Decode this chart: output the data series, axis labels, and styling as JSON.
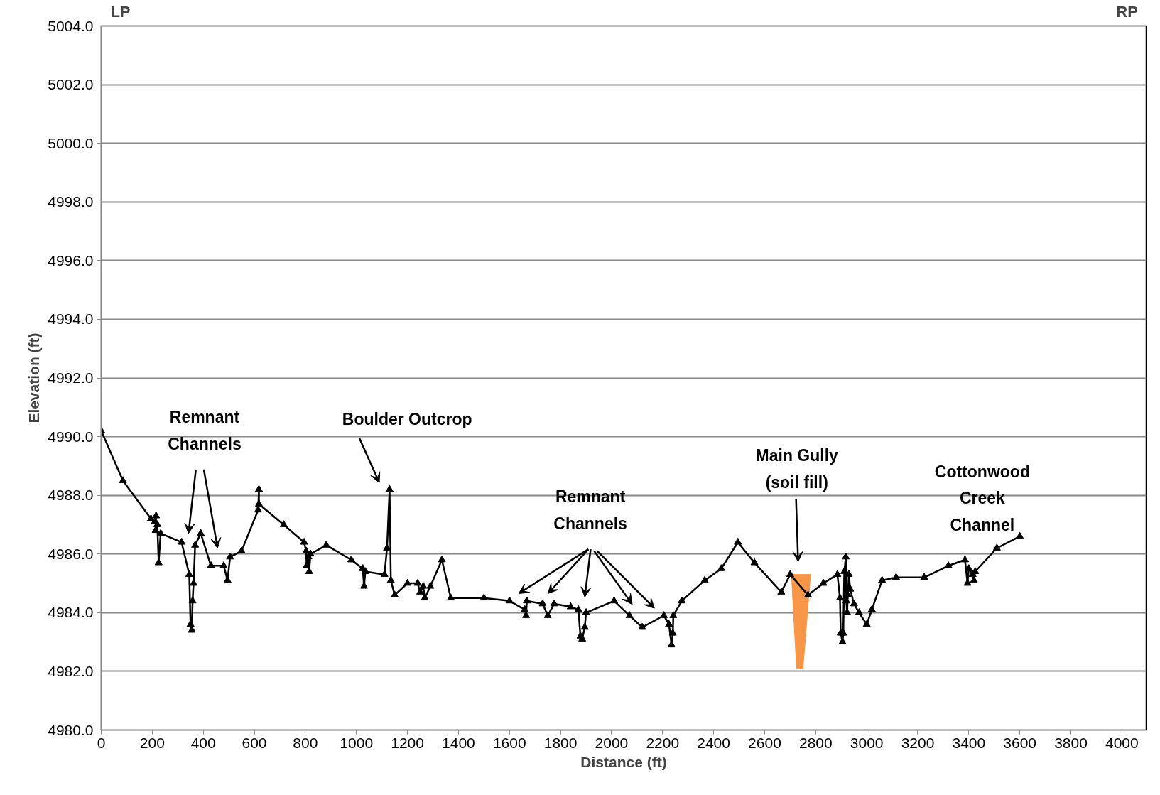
{
  "chart_data": {
    "type": "line",
    "xlabel": "Distance (ft)",
    "ylabel": "Elevation (ft)",
    "xlim": [
      0,
      4095
    ],
    "xticks": [
      0,
      200,
      400,
      600,
      800,
      1000,
      1200,
      1400,
      1600,
      1800,
      2000,
      2200,
      2400,
      2600,
      2800,
      3000,
      3200,
      3400,
      3600,
      3800,
      4000
    ],
    "ylim": [
      4980,
      5004
    ],
    "yticks": [
      {
        "value": 4980,
        "label": "4980.0"
      },
      {
        "value": 4982,
        "label": "4982.0"
      },
      {
        "value": 4984,
        "label": "4984.0"
      },
      {
        "value": 4986,
        "label": "4986.0"
      },
      {
        "value": 4988,
        "label": "4988.0"
      },
      {
        "value": 4990,
        "label": "4990.0"
      },
      {
        "value": 4992,
        "label": "4992.0"
      },
      {
        "value": 4994,
        "label": "4994.0"
      },
      {
        "value": 4996,
        "label": "4996.0"
      },
      {
        "value": 4998,
        "label": "4998.0"
      },
      {
        "value": 5000,
        "label": "5000.0"
      },
      {
        "value": 5002,
        "label": "5002.0"
      },
      {
        "value": 5004,
        "label": "5004.0"
      }
    ],
    "grid": "y",
    "line_style": "solid",
    "series": [
      {
        "type": "area",
        "color": "#f79646",
        "x": [
          2705,
          2725,
          2750,
          2780
        ],
        "values": [
          4985.3,
          4982.1,
          4982.1,
          4985.3
        ]
      },
      {
        "marker": "triangle",
        "color": "#000000",
        "x": [
          0,
          85,
          195,
          210,
          215,
          213,
          220,
          225,
          233,
          315,
          345,
          350,
          355,
          358,
          362,
          368,
          390,
          430,
          480,
          495,
          505,
          550,
          615,
          618,
          618,
          715,
          795,
          803,
          805,
          812,
          815,
          820,
          882,
          980,
          1025,
          1030,
          1035,
          1110,
          1120,
          1130,
          1135,
          1150,
          1200,
          1240,
          1250,
          1262,
          1268,
          1290,
          1335,
          1370,
          1500,
          1600,
          1660,
          1665,
          1668,
          1730,
          1750,
          1775,
          1840,
          1870,
          1878,
          1885,
          1895,
          1900,
          2010,
          2070,
          2120,
          2205,
          2225,
          2235,
          2240,
          2242,
          2275,
          2365,
          2430,
          2495,
          2560,
          2665,
          2700,
          2770,
          2830,
          2885,
          2895,
          2898,
          2905,
          2908,
          2912,
          2918,
          2920,
          2923,
          2926,
          2930,
          2935,
          2950,
          2970,
          3000,
          3020,
          3060,
          3115,
          3225,
          3320,
          3385,
          3395,
          3400,
          3415,
          3420,
          3425,
          3510,
          3600
        ],
        "values": [
          4990.2,
          4988.5,
          4987.2,
          4987.1,
          4987.3,
          4986.8,
          4987.0,
          4985.7,
          4986.7,
          4986.4,
          4985.3,
          4983.6,
          4983.4,
          4984.4,
          4985.0,
          4986.3,
          4986.7,
          4985.6,
          4985.6,
          4985.1,
          4985.9,
          4986.1,
          4987.5,
          4988.2,
          4987.7,
          4987.0,
          4986.4,
          4986.1,
          4985.6,
          4985.9,
          4985.4,
          4986.0,
          4986.3,
          4985.8,
          4985.5,
          4984.9,
          4985.4,
          4985.3,
          4986.2,
          4988.2,
          4985.1,
          4984.6,
          4985.0,
          4985.0,
          4984.7,
          4984.9,
          4984.5,
          4984.9,
          4985.8,
          4984.5,
          4984.5,
          4984.4,
          4984.1,
          4983.9,
          4984.4,
          4984.3,
          4983.9,
          4984.3,
          4984.2,
          4984.1,
          4983.2,
          4983.1,
          4983.5,
          4984.0,
          4984.4,
          4983.9,
          4983.5,
          4983.9,
          4983.6,
          4982.9,
          4983.3,
          4983.9,
          4984.4,
          4985.1,
          4985.5,
          4986.4,
          4985.7,
          4984.7,
          4985.3,
          4984.6,
          4985.0,
          4985.3,
          4984.5,
          4983.3,
          4983.0,
          4983.3,
          4985.4,
          4985.9,
          4984.4,
          4984.0,
          4984.6,
          4985.3,
          4984.8,
          4984.3,
          4984.0,
          4983.6,
          4984.1,
          4985.1,
          4985.2,
          4985.2,
          4985.6,
          4985.8,
          4985.0,
          4985.5,
          4985.3,
          4985.1,
          4985.4,
          4986.2,
          4986.6
        ]
      }
    ],
    "annotations": [
      "LP",
      "RP",
      "Remnant\nChannels",
      "Boulder Outcrop",
      "Remnant\nChannels",
      "Main Gully\n(soil fill)",
      "Cottonwood\nCreek\nChannel"
    ]
  }
}
